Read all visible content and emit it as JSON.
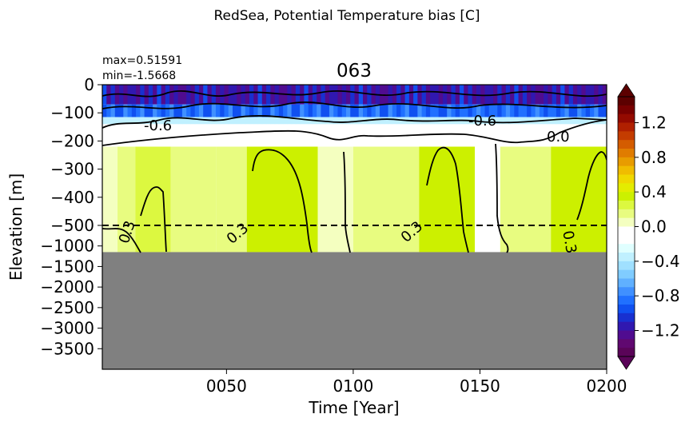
{
  "figure": {
    "suptitle": "RedSea, Potential Temperature bias [C]",
    "title": "063",
    "max_text": "max=0.51591",
    "min_text": "min=-1.5668"
  },
  "chart_data": {
    "type": "heatmap",
    "title": "063",
    "xlabel": "Time [Year]",
    "ylabel": "Elevation [m]",
    "xlim": [
      1,
      200
    ],
    "x_ticks": [
      50,
      100,
      150,
      200
    ],
    "x_tick_labels": [
      "0050",
      "0100",
      "0150",
      "0200"
    ],
    "y_ticks_upper": [
      0,
      -100,
      -200,
      -300,
      -400,
      -500
    ],
    "y_ticks_lower": [
      -1000,
      -1500,
      -2000,
      -2500,
      -3000,
      -3500
    ],
    "y_tick_labels": [
      "0",
      "−100",
      "−200",
      "−300",
      "−400",
      "−500",
      "−1000",
      "−1500",
      "−2000",
      "−2500",
      "−3000",
      "−3500"
    ],
    "y_scale": "split: linear 0 to -500 (upper), linear -500 to -4000 (lower)",
    "ylim": [
      -4000,
      0
    ],
    "seafloor_depth": -1150,
    "seafloor_color": "#808080",
    "dashed_line_depth": -500,
    "colorbar": {
      "vmin": -1.5,
      "vmax": 1.5,
      "ticks": [
        1.2,
        0.8,
        0.4,
        0.0,
        -0.4,
        -0.8,
        -1.2
      ],
      "tick_labels": [
        "1.2",
        "0.8",
        "0.4",
        "0.0",
        "−0.4",
        "−0.8",
        "−1.2"
      ],
      "colors_top_to_bottom": [
        "#5c0000",
        "#780000",
        "#940a00",
        "#b02000",
        "#c43c00",
        "#d45c00",
        "#e07c00",
        "#e89c00",
        "#f0bc00",
        "#f0d800",
        "#e4ec00",
        "#ccf000",
        "#dcf840",
        "#e8fc80",
        "#f4ffc0",
        "#ffffff",
        "#ffffff",
        "#e0ffff",
        "#c0f0ff",
        "#a0e0ff",
        "#80ccff",
        "#60b0ff",
        "#4090ff",
        "#2070ff",
        "#1050f0",
        "#1830d0",
        "#3018b0",
        "#500c90",
        "#600870",
        "#5a0458"
      ]
    },
    "contour_labels": [
      "-0.6",
      "-0.6",
      "0.0",
      "0.3",
      "0.3",
      "0.3",
      "0.3",
      "0.3"
    ],
    "yearly_regions": [
      {
        "x0": 1,
        "x1": 7,
        "bias": 0.05
      },
      {
        "x0": 7,
        "x1": 14,
        "bias": 0.12
      },
      {
        "x0": 14,
        "x1": 28,
        "bias": 0.22
      },
      {
        "x0": 28,
        "x1": 46,
        "bias": 0.1
      },
      {
        "x0": 46,
        "x1": 58,
        "bias": 0.18
      },
      {
        "x0": 58,
        "x1": 86,
        "bias": 0.4
      },
      {
        "x0": 86,
        "x1": 100,
        "bias": 0.08
      },
      {
        "x0": 100,
        "x1": 126,
        "bias": 0.12
      },
      {
        "x0": 126,
        "x1": 148,
        "bias": 0.35
      },
      {
        "x0": 148,
        "x1": 158,
        "bias": -0.05
      },
      {
        "x0": 158,
        "x1": 178,
        "bias": 0.1
      },
      {
        "x0": 178,
        "x1": 200,
        "bias": 0.3
      }
    ]
  }
}
